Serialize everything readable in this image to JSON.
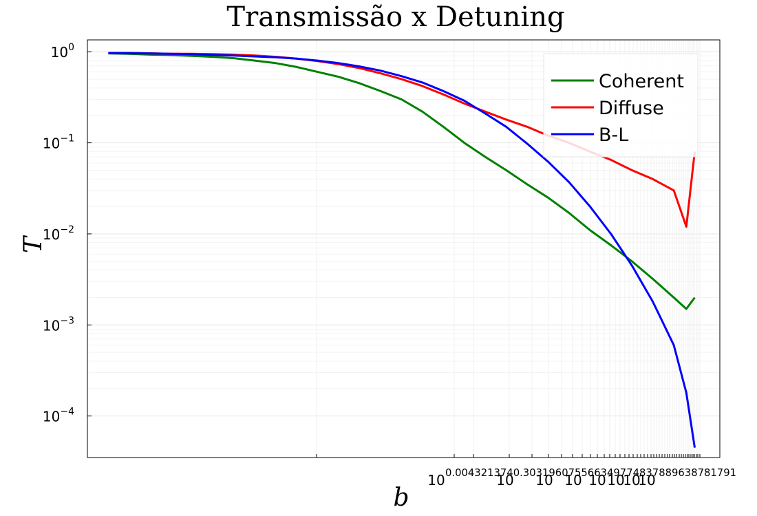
{
  "chart_data": {
    "type": "line",
    "title": "Transmissão x Detuning",
    "xlabel": "b",
    "ylabel": "T",
    "x_scale": "log",
    "y_scale": "log",
    "ylim": [
      3.5e-05,
      1.35
    ],
    "y_ticks": [
      {
        "value": 1,
        "mantissa": "10",
        "exponent": "0"
      },
      {
        "value": 0.1,
        "mantissa": "10",
        "exponent": "−1"
      },
      {
        "value": 0.01,
        "mantissa": "10",
        "exponent": "−2"
      },
      {
        "value": 0.001,
        "mantissa": "10",
        "exponent": "−3"
      },
      {
        "value": 0.0001,
        "mantissa": "10",
        "exponent": "−4"
      }
    ],
    "x_tick_text": {
      "bases": [
        "10",
        "10",
        "10",
        "10",
        "10",
        "10",
        "10",
        "10"
      ],
      "exponents_run": "0.004321374 0.30319 6075 56 63 49 77 48 37 88 96 38 78 17 91"
    },
    "grid": true,
    "legend_position": "top-right",
    "series": [
      {
        "name": "Coherent",
        "color": "#008000",
        "points": [
          [
            0.1,
            0.96
          ],
          [
            0.2,
            0.95
          ],
          [
            0.3,
            0.93
          ],
          [
            0.4,
            0.92
          ],
          [
            0.5,
            0.9
          ],
          [
            0.6,
            0.88
          ],
          [
            0.7,
            0.85
          ],
          [
            0.8,
            0.8
          ],
          [
            0.9,
            0.75
          ],
          [
            1.0,
            0.68
          ],
          [
            1.1,
            0.6
          ],
          [
            1.2,
            0.53
          ],
          [
            1.3,
            0.45
          ],
          [
            1.4,
            0.37
          ],
          [
            1.5,
            0.3
          ],
          [
            1.6,
            0.22
          ],
          [
            1.7,
            0.15
          ],
          [
            1.8,
            0.1
          ],
          [
            1.9,
            0.07
          ],
          [
            2.0,
            0.05
          ],
          [
            2.1,
            0.035
          ],
          [
            2.2,
            0.025
          ],
          [
            2.3,
            0.017
          ],
          [
            2.4,
            0.011
          ],
          [
            2.5,
            0.0075
          ],
          [
            2.6,
            0.005
          ],
          [
            2.7,
            0.0032
          ],
          [
            2.8,
            0.002
          ],
          [
            2.86,
            0.0015
          ],
          [
            2.9,
            0.002
          ]
        ]
      },
      {
        "name": "Diffuse",
        "color": "#ff0000",
        "points": [
          [
            0.1,
            0.97
          ],
          [
            0.2,
            0.97
          ],
          [
            0.3,
            0.96
          ],
          [
            0.4,
            0.95
          ],
          [
            0.5,
            0.95
          ],
          [
            0.6,
            0.94
          ],
          [
            0.7,
            0.93
          ],
          [
            0.8,
            0.91
          ],
          [
            0.9,
            0.88
          ],
          [
            1.0,
            0.84
          ],
          [
            1.1,
            0.79
          ],
          [
            1.2,
            0.73
          ],
          [
            1.3,
            0.66
          ],
          [
            1.4,
            0.58
          ],
          [
            1.5,
            0.5
          ],
          [
            1.6,
            0.42
          ],
          [
            1.7,
            0.34
          ],
          [
            1.8,
            0.27
          ],
          [
            1.9,
            0.22
          ],
          [
            2.0,
            0.18
          ],
          [
            2.1,
            0.15
          ],
          [
            2.2,
            0.12
          ],
          [
            2.3,
            0.1
          ],
          [
            2.4,
            0.08
          ],
          [
            2.5,
            0.065
          ],
          [
            2.6,
            0.05
          ],
          [
            2.7,
            0.04
          ],
          [
            2.8,
            0.03
          ],
          [
            2.86,
            0.012
          ],
          [
            2.9,
            0.08
          ]
        ]
      },
      {
        "name": "B-L",
        "color": "#0000ff",
        "points": [
          [
            0.1,
            0.97
          ],
          [
            0.3,
            0.96
          ],
          [
            0.5,
            0.94
          ],
          [
            0.7,
            0.91
          ],
          [
            0.9,
            0.87
          ],
          [
            1.0,
            0.84
          ],
          [
            1.1,
            0.8
          ],
          [
            1.2,
            0.75
          ],
          [
            1.3,
            0.69
          ],
          [
            1.4,
            0.62
          ],
          [
            1.5,
            0.54
          ],
          [
            1.6,
            0.46
          ],
          [
            1.7,
            0.37
          ],
          [
            1.8,
            0.29
          ],
          [
            1.9,
            0.21
          ],
          [
            2.0,
            0.15
          ],
          [
            2.1,
            0.098
          ],
          [
            2.2,
            0.062
          ],
          [
            2.3,
            0.037
          ],
          [
            2.4,
            0.02
          ],
          [
            2.5,
            0.01
          ],
          [
            2.6,
            0.0045
          ],
          [
            2.7,
            0.0018
          ],
          [
            2.8,
            0.0006
          ],
          [
            2.86,
            0.00018
          ],
          [
            2.9,
            4.5e-05
          ]
        ]
      }
    ]
  }
}
